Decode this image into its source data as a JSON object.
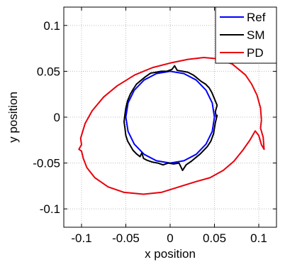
{
  "chart_data": {
    "type": "line",
    "title": "",
    "xlabel": "x position",
    "ylabel": "y position",
    "xlim": [
      -0.12,
      0.12
    ],
    "ylim": [
      -0.12,
      0.12
    ],
    "xticks": [
      -0.1,
      -0.05,
      0,
      0.05,
      0.1
    ],
    "yticks": [
      -0.1,
      -0.05,
      0,
      0.05,
      0.1
    ],
    "xtick_labels": [
      "-0.1",
      "-0.05",
      "0",
      "0.05",
      "0.1"
    ],
    "ytick_labels": [
      "-0.1",
      "-0.05",
      "0",
      "0.05",
      "0.1"
    ],
    "grid": true,
    "legend_position": "top-right",
    "series": [
      {
        "name": "Ref",
        "color": "#0000ff",
        "x": [
          0.05,
          0.0475,
          0.0405,
          0.0294,
          0.0155,
          0,
          -0.0155,
          -0.0294,
          -0.0405,
          -0.0475,
          -0.05,
          -0.0475,
          -0.0405,
          -0.0294,
          -0.0155,
          0,
          0.0155,
          0.0294,
          0.0405,
          0.0475,
          0.05
        ],
        "y": [
          0,
          0.0155,
          0.0294,
          0.0405,
          0.0475,
          0.05,
          0.0475,
          0.0405,
          0.0294,
          0.0155,
          0,
          -0.0155,
          -0.0294,
          -0.0405,
          -0.0475,
          -0.05,
          -0.0475,
          -0.0405,
          -0.0294,
          -0.0155,
          0
        ]
      },
      {
        "name": "SM",
        "color": "#000000",
        "x": [
          0.052,
          0.051,
          0.053,
          0.05,
          0.047,
          0.044,
          0.04,
          0.035,
          0.03,
          0.026,
          0.02,
          0.014,
          0.008,
          0.005,
          0.002,
          -0.004,
          -0.01,
          -0.016,
          -0.022,
          -0.028,
          -0.033,
          -0.038,
          -0.042,
          -0.045,
          -0.048,
          -0.05,
          -0.051,
          -0.052,
          -0.051,
          -0.05,
          -0.048,
          -0.045,
          -0.042,
          -0.038,
          -0.034,
          -0.032,
          -0.03,
          -0.026,
          -0.02,
          -0.014,
          -0.008,
          -0.002,
          0.004,
          0.01,
          0.014,
          0.018,
          0.024,
          0.029,
          0.034,
          0.038,
          0.042,
          0.046,
          0.049,
          0.05,
          0.051,
          0.052,
          0.053,
          0.052
        ],
        "y": [
          0,
          0.006,
          0.013,
          0.02,
          0.027,
          0.032,
          0.036,
          0.039,
          0.043,
          0.046,
          0.049,
          0.05,
          0.051,
          0.056,
          0.052,
          0.05,
          0.05,
          0.049,
          0.048,
          0.044,
          0.04,
          0.036,
          0.03,
          0.025,
          0.018,
          0.01,
          0.003,
          -0.005,
          -0.012,
          -0.02,
          -0.026,
          -0.031,
          -0.036,
          -0.04,
          -0.043,
          -0.039,
          -0.045,
          -0.047,
          -0.049,
          -0.05,
          -0.052,
          -0.05,
          -0.051,
          -0.05,
          -0.058,
          -0.052,
          -0.048,
          -0.044,
          -0.04,
          -0.036,
          -0.032,
          -0.026,
          -0.018,
          -0.012,
          -0.006,
          -0.002,
          0.002,
          0
        ]
      },
      {
        "name": "PD",
        "color": "#e8000b",
        "x": [
          0.103,
          0.102,
          0.098,
          0.092,
          0.085,
          0.07,
          0.05,
          0.038,
          0.02,
          0,
          -0.02,
          -0.04,
          -0.06,
          -0.075,
          -0.088,
          -0.096,
          -0.101,
          -0.1,
          -0.103,
          -0.1,
          -0.098,
          -0.094,
          -0.085,
          -0.07,
          -0.052,
          -0.03,
          -0.01,
          0.01,
          0.03,
          0.045,
          0.06,
          0.072,
          0.082,
          0.09,
          0.096,
          0.1,
          0.103,
          0.106,
          0.105,
          0.102,
          0.103
        ],
        "y": [
          -0.003,
          0.01,
          0.024,
          0.036,
          0.046,
          0.058,
          0.064,
          0.065,
          0.063,
          0.059,
          0.054,
          0.046,
          0.034,
          0.022,
          0.007,
          -0.007,
          -0.023,
          -0.03,
          -0.035,
          -0.037,
          -0.045,
          -0.055,
          -0.066,
          -0.076,
          -0.082,
          -0.084,
          -0.082,
          -0.076,
          -0.07,
          -0.066,
          -0.058,
          -0.048,
          -0.036,
          -0.025,
          -0.015,
          -0.02,
          -0.03,
          -0.035,
          -0.022,
          -0.012,
          -0.003
        ]
      }
    ]
  }
}
